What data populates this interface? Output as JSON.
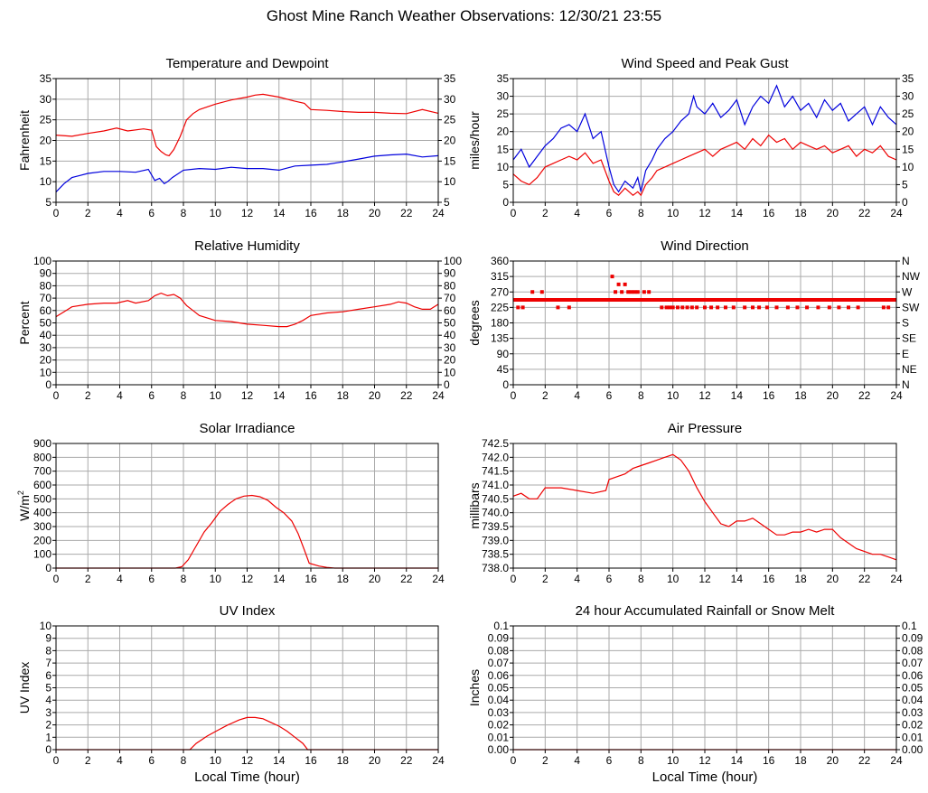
{
  "page": {
    "title": "Ghost Mine Ranch Weather Observations: 12/30/21 23:55",
    "xlabel_bottom": "Local Time (hour)"
  },
  "colors": {
    "red": "#ee0000",
    "blue": "#0000dd",
    "grid": "#aaaaaa"
  },
  "chart_data": [
    {
      "id": "temp",
      "type": "line",
      "title": "Temperature and Dewpoint",
      "ylabel": "Fahrenheit",
      "xlim": [
        0,
        24
      ],
      "ylim": [
        5,
        35
      ],
      "yticks": [
        5,
        10,
        15,
        20,
        25,
        30,
        35
      ],
      "yticklabels": [
        "5",
        "10",
        "15",
        "20",
        "25",
        "30",
        "35"
      ],
      "right_axis": true,
      "right_ticklabels": [
        "5",
        "10",
        "15",
        "20",
        "25",
        "30",
        "35"
      ],
      "grid": true,
      "series": [
        {
          "color": "red",
          "x": [
            0,
            1,
            2,
            3,
            3.8,
            4.5,
            5.5,
            6,
            6.3,
            6.6,
            6.9,
            7.1,
            7.4,
            7.8,
            8.2,
            8.6,
            9,
            10,
            11,
            12,
            12.5,
            13,
            14,
            15,
            15.6,
            16,
            17,
            18,
            19,
            20,
            21,
            22,
            23,
            24
          ],
          "y": [
            21.3,
            21,
            21.7,
            22.3,
            23,
            22.3,
            22.8,
            22.5,
            18.5,
            17.3,
            16.5,
            16.3,
            17.8,
            21,
            25,
            26.5,
            27.5,
            28.8,
            29.8,
            30.5,
            31,
            31.2,
            30.5,
            29.5,
            29,
            27.5,
            27.3,
            27,
            26.8,
            26.8,
            26.6,
            26.5,
            27.5,
            26.6
          ]
        },
        {
          "color": "blue",
          "x": [
            0,
            0.5,
            1,
            1.5,
            2,
            3,
            4,
            5,
            5.8,
            6.2,
            6.5,
            6.8,
            7,
            7.3,
            8,
            9,
            10,
            11,
            12,
            13,
            14,
            15,
            16,
            17,
            18,
            19,
            20,
            21,
            22,
            23,
            24
          ],
          "y": [
            7.5,
            9.5,
            11,
            11.5,
            12,
            12.5,
            12.5,
            12.3,
            13,
            10.3,
            10.8,
            9.5,
            10,
            11,
            12.8,
            13.2,
            13,
            13.5,
            13.2,
            13.2,
            12.8,
            13.8,
            14,
            14.2,
            14.8,
            15.5,
            16.2,
            16.5,
            16.7,
            16,
            16.3
          ]
        }
      ]
    },
    {
      "id": "wind",
      "type": "line",
      "title": "Wind Speed and Peak Gust",
      "ylabel": "miles/hour",
      "xlim": [
        0,
        24
      ],
      "ylim": [
        0,
        35
      ],
      "yticks": [
        0,
        5,
        10,
        15,
        20,
        25,
        30,
        35
      ],
      "yticklabels": [
        "0",
        "5",
        "10",
        "15",
        "20",
        "25",
        "30",
        "35"
      ],
      "right_axis": true,
      "right_ticklabels": [
        "0",
        "5",
        "10",
        "15",
        "20",
        "25",
        "30",
        "35"
      ],
      "grid": true,
      "series": [
        {
          "color": "blue",
          "x": [
            0,
            0.5,
            1,
            1.5,
            2,
            2.5,
            3,
            3.5,
            4,
            4.5,
            5,
            5.5,
            6,
            6.3,
            6.6,
            7,
            7.5,
            7.8,
            8,
            8.3,
            8.7,
            9,
            9.5,
            10,
            10.5,
            11,
            11.3,
            11.5,
            12,
            12.5,
            13,
            13.5,
            14,
            14.5,
            15,
            15.5,
            16,
            16.5,
            17,
            17.5,
            18,
            18.5,
            19,
            19.5,
            20,
            20.5,
            21,
            21.5,
            22,
            22.5,
            23,
            23.5,
            24
          ],
          "y": [
            12,
            15,
            10,
            13,
            16,
            18,
            21,
            22,
            20,
            25,
            18,
            20,
            10,
            5,
            3,
            6,
            4,
            7,
            3,
            9,
            12,
            15,
            18,
            20,
            23,
            25,
            30,
            27,
            25,
            28,
            24,
            26,
            29,
            22,
            27,
            30,
            28,
            33,
            27,
            30,
            26,
            28,
            24,
            29,
            26,
            28,
            23,
            25,
            27,
            22,
            27,
            24,
            22
          ]
        },
        {
          "color": "red",
          "x": [
            0,
            0.5,
            1,
            1.5,
            2,
            2.5,
            3,
            3.5,
            4,
            4.5,
            5,
            5.5,
            6,
            6.3,
            6.6,
            7,
            7.5,
            7.8,
            8,
            8.3,
            8.7,
            9,
            9.5,
            10,
            10.5,
            11,
            11.5,
            12,
            12.5,
            13,
            13.5,
            14,
            14.5,
            15,
            15.5,
            16,
            16.5,
            17,
            17.5,
            18,
            18.5,
            19,
            19.5,
            20,
            20.5,
            21,
            21.5,
            22,
            22.5,
            23,
            23.5,
            24
          ],
          "y": [
            8,
            6,
            5,
            7,
            10,
            11,
            12,
            13,
            12,
            14,
            11,
            12,
            6,
            3,
            2,
            4,
            2,
            3,
            2,
            5,
            7,
            9,
            10,
            11,
            12,
            13,
            14,
            15,
            13,
            15,
            16,
            17,
            15,
            18,
            16,
            19,
            17,
            18,
            15,
            17,
            16,
            15,
            16,
            14,
            15,
            16,
            13,
            15,
            14,
            16,
            13,
            12
          ]
        }
      ]
    },
    {
      "id": "rh",
      "type": "line",
      "title": "Relative Humidity",
      "ylabel": "Percent",
      "xlim": [
        0,
        24
      ],
      "ylim": [
        0,
        100
      ],
      "yticks": [
        0,
        10,
        20,
        30,
        40,
        50,
        60,
        70,
        80,
        90,
        100
      ],
      "yticklabels": [
        "0",
        "10",
        "20",
        "30",
        "40",
        "50",
        "60",
        "70",
        "80",
        "90",
        "100"
      ],
      "right_axis": true,
      "right_ticklabels": [
        "0",
        "10",
        "20",
        "30",
        "40",
        "50",
        "60",
        "70",
        "80",
        "90",
        "100"
      ],
      "grid": true,
      "series": [
        {
          "color": "red",
          "x": [
            0,
            0.5,
            1,
            2,
            3,
            3.8,
            4.5,
            5,
            5.8,
            6.2,
            6.6,
            7,
            7.4,
            7.8,
            8.2,
            8.6,
            9,
            10,
            11,
            12,
            13,
            14,
            14.5,
            15,
            15.5,
            16,
            17,
            18,
            19,
            20,
            21,
            21.5,
            22,
            22.5,
            23,
            23.5,
            24
          ],
          "y": [
            55,
            59,
            63,
            65,
            66,
            66,
            68,
            66,
            68,
            72,
            74,
            72,
            73,
            70,
            64,
            60,
            56,
            52,
            51,
            49,
            48,
            47,
            47,
            49,
            52,
            56,
            58,
            59,
            61,
            63,
            65,
            67,
            66,
            63,
            61,
            61,
            65
          ]
        }
      ]
    },
    {
      "id": "wdir",
      "type": "scatter",
      "title": "Wind Direction",
      "ylabel": "degrees",
      "xlim": [
        0,
        24
      ],
      "ylim": [
        0,
        360
      ],
      "yticks": [
        0,
        45,
        90,
        135,
        180,
        225,
        270,
        315,
        360
      ],
      "yticklabels": [
        "0",
        "45",
        "90",
        "135",
        "180",
        "225",
        "270",
        "315",
        "360"
      ],
      "right_axis": true,
      "right_ticklabels": [
        "N",
        "NE",
        "E",
        "SE",
        "S",
        "SW",
        "W",
        "NW",
        "N"
      ],
      "grid": true,
      "series": [
        {
          "color": "red",
          "main_level": 247,
          "main_range": [
            0,
            24
          ],
          "x": [
            0.3,
            0.6,
            1.2,
            1.8,
            2.8,
            3.5,
            6.2,
            6.4,
            6.6,
            6.8,
            7.0,
            7.2,
            7.4,
            7.6,
            7.8,
            8.2,
            8.5,
            9.3,
            9.6,
            9.8,
            10.0,
            10.3,
            10.6,
            10.9,
            11.2,
            11.5,
            12.0,
            12.4,
            12.8,
            13.3,
            13.8,
            14.5,
            15.0,
            15.4,
            15.9,
            16.5,
            17.2,
            17.8,
            18.4,
            19.1,
            19.8,
            20.4,
            21.0,
            21.6,
            23.2,
            23.5
          ],
          "y": [
            225,
            225,
            270,
            270,
            225,
            225,
            315,
            270,
            292,
            270,
            292,
            270,
            270,
            270,
            270,
            270,
            270,
            225,
            225,
            225,
            225,
            225,
            225,
            225,
            225,
            225,
            225,
            225,
            225,
            225,
            225,
            225,
            225,
            225,
            225,
            225,
            225,
            225,
            225,
            225,
            225,
            225,
            225,
            225,
            225,
            225
          ]
        }
      ]
    },
    {
      "id": "solar",
      "type": "line",
      "title": "Solar Irradiance",
      "ylabel": "W/m",
      "ylabel_sup": "2",
      "xlim": [
        0,
        24
      ],
      "ylim": [
        0,
        900
      ],
      "yticks": [
        0,
        100,
        200,
        300,
        400,
        500,
        600,
        700,
        800,
        900
      ],
      "yticklabels": [
        "0",
        "100",
        "200",
        "300",
        "400",
        "500",
        "600",
        "700",
        "800",
        "900"
      ],
      "right_axis": false,
      "grid": true,
      "series": [
        {
          "color": "red",
          "x": [
            0,
            7.5,
            7.9,
            8.3,
            8.8,
            9.3,
            9.8,
            10.3,
            10.8,
            11.3,
            11.8,
            12.3,
            12.8,
            13.3,
            13.8,
            14.3,
            14.8,
            15.2,
            15.6,
            15.9,
            16.5,
            17,
            17.5,
            24
          ],
          "y": [
            0,
            0,
            10,
            60,
            160,
            260,
            330,
            410,
            460,
            500,
            520,
            525,
            515,
            490,
            440,
            400,
            340,
            250,
            130,
            35,
            15,
            5,
            0,
            0
          ]
        }
      ]
    },
    {
      "id": "pressure",
      "type": "line",
      "title": "Air Pressure",
      "ylabel": "millibars",
      "xlim": [
        0,
        24
      ],
      "ylim": [
        738.0,
        742.5
      ],
      "yticks": [
        738.0,
        738.5,
        739.0,
        739.5,
        740.0,
        740.5,
        741.0,
        741.5,
        742.0,
        742.5
      ],
      "yticklabels": [
        "738.0",
        "738.5",
        "739.0",
        "739.5",
        "740.0",
        "740.5",
        "741.0",
        "741.5",
        "742.0",
        "742.5"
      ],
      "right_axis": false,
      "grid": true,
      "series": [
        {
          "color": "red",
          "x": [
            0,
            0.5,
            1,
            1.5,
            2,
            3,
            4,
            5,
            5.8,
            6,
            6.5,
            7,
            7.5,
            8,
            8.5,
            9,
            9.5,
            10,
            10.5,
            11,
            11.5,
            12,
            12.5,
            13,
            13.5,
            14,
            14.5,
            15,
            15.5,
            16,
            16.5,
            17,
            17.5,
            18,
            18.5,
            19,
            19.5,
            20,
            20.5,
            21,
            21.5,
            22,
            22.5,
            23,
            23.5,
            24
          ],
          "y": [
            740.6,
            740.7,
            740.5,
            740.5,
            740.9,
            740.9,
            740.8,
            740.7,
            740.8,
            741.2,
            741.3,
            741.4,
            741.6,
            741.7,
            741.8,
            741.9,
            742.0,
            742.1,
            741.9,
            741.5,
            740.9,
            740.4,
            740.0,
            739.6,
            739.5,
            739.7,
            739.7,
            739.8,
            739.6,
            739.4,
            739.2,
            739.2,
            739.3,
            739.3,
            739.4,
            739.3,
            739.4,
            739.4,
            739.1,
            738.9,
            738.7,
            738.6,
            738.5,
            738.5,
            738.4,
            738.3
          ]
        }
      ]
    },
    {
      "id": "uv",
      "type": "line",
      "title": "UV Index",
      "ylabel": "UV Index",
      "xlim": [
        0,
        24
      ],
      "ylim": [
        0,
        10
      ],
      "yticks": [
        0,
        1,
        2,
        3,
        4,
        5,
        6,
        7,
        8,
        9,
        10
      ],
      "yticklabels": [
        "0",
        "1",
        "2",
        "3",
        "4",
        "5",
        "6",
        "7",
        "8",
        "9",
        "10"
      ],
      "right_axis": false,
      "grid": true,
      "series": [
        {
          "color": "red",
          "x": [
            0,
            8.4,
            8.8,
            9.5,
            10.2,
            10.8,
            11.5,
            12,
            12.5,
            13,
            13.5,
            14,
            14.5,
            15,
            15.5,
            15.8,
            24
          ],
          "y": [
            0,
            0,
            0.5,
            1.1,
            1.6,
            2.0,
            2.4,
            2.6,
            2.6,
            2.5,
            2.2,
            1.9,
            1.5,
            1.0,
            0.5,
            0,
            0
          ]
        }
      ]
    },
    {
      "id": "rain",
      "type": "line",
      "title": "24 hour Accumulated Rainfall or Snow Melt",
      "ylabel": "Inches",
      "xlim": [
        0,
        24
      ],
      "ylim": [
        0,
        0.1
      ],
      "yticks": [
        0,
        0.01,
        0.02,
        0.03,
        0.04,
        0.05,
        0.06,
        0.07,
        0.08,
        0.09,
        0.1
      ],
      "yticklabels": [
        "0.00",
        "0.01",
        "0.02",
        "0.03",
        "0.04",
        "0.05",
        "0.06",
        "0.07",
        "0.08",
        "0.09",
        "0.1"
      ],
      "right_axis": true,
      "right_ticklabels": [
        "0.00",
        "0.01",
        "0.02",
        "0.03",
        "0.04",
        "0.05",
        "0.06",
        "0.07",
        "0.08",
        "0.09",
        "0.1"
      ],
      "grid": true,
      "series": [
        {
          "color": "red",
          "x": [
            0,
            24
          ],
          "y": [
            0,
            0
          ]
        }
      ]
    }
  ],
  "xticklabels": [
    "0",
    "2",
    "4",
    "6",
    "8",
    "10",
    "12",
    "14",
    "16",
    "18",
    "20",
    "22",
    "24"
  ]
}
